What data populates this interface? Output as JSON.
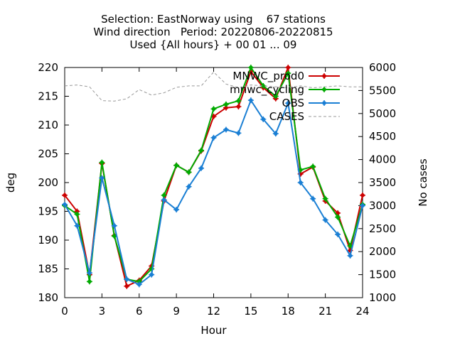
{
  "chart_data": {
    "type": "line",
    "title_lines": [
      "Selection: EastNorway using    67 stations",
      "Wind direction   Period: 20220806-20220815",
      "Used {All hours} + 00 01 ... 09"
    ],
    "xlabel": "Hour",
    "ylabel": "deg",
    "y2label": "No cases",
    "xlim": [
      0,
      24
    ],
    "ylim": [
      180,
      220
    ],
    "y2lim": [
      1000,
      6000
    ],
    "xticks": [
      "0",
      "3",
      "6",
      "9",
      "12",
      "15",
      "18",
      "21",
      "24"
    ],
    "yticks": [
      "180",
      "185",
      "190",
      "195",
      "200",
      "205",
      "210",
      "215",
      "220"
    ],
    "y2ticks": [
      "1000",
      "1500",
      "2000",
      "2500",
      "3000",
      "3500",
      "4000",
      "4500",
      "5000",
      "5500",
      "6000"
    ],
    "grid": false,
    "legend_position": "top-right",
    "x": [
      0,
      1,
      2,
      3,
      4,
      5,
      6,
      7,
      8,
      9,
      10,
      11,
      12,
      13,
      14,
      15,
      16,
      17,
      18,
      19,
      20,
      21,
      22,
      23,
      24
    ],
    "series": [
      {
        "name": "MNWC_prod0",
        "color": "#cc0000",
        "axis": "left",
        "values": [
          197.8,
          195.0,
          184.0,
          203.3,
          190.8,
          182.0,
          183.0,
          185.5,
          196.8,
          203.0,
          201.8,
          205.5,
          211.5,
          213.0,
          213.2,
          219.3,
          216.5,
          214.6,
          220.0,
          201.5,
          202.7,
          196.8,
          194.7,
          188.2,
          197.8
        ]
      },
      {
        "name": "mnwc_cycling",
        "color": "#00aa00",
        "axis": "left",
        "values": [
          196.0,
          194.5,
          182.8,
          203.5,
          190.7,
          183.2,
          182.8,
          185.0,
          197.8,
          203.0,
          201.8,
          205.6,
          212.8,
          213.6,
          214.2,
          220.0,
          216.8,
          215.0,
          219.0,
          202.2,
          202.8,
          197.2,
          194.0,
          189.0,
          196.2
        ]
      },
      {
        "name": "OBS",
        "color": "#1a7fd4",
        "axis": "left",
        "values": [
          196.2,
          192.5,
          184.3,
          200.8,
          192.5,
          183.2,
          182.3,
          184.0,
          197.0,
          195.3,
          199.3,
          202.5,
          207.8,
          209.2,
          208.6,
          214.3,
          211.0,
          208.5,
          213.8,
          200.0,
          197.2,
          193.5,
          191.0,
          187.3,
          196.0
        ]
      },
      {
        "name": "CASES",
        "color": "#999999",
        "axis": "right",
        "values": [
          5600,
          5620,
          5580,
          5280,
          5270,
          5320,
          5520,
          5400,
          5450,
          5570,
          5600,
          5600,
          5900,
          5640,
          5560,
          5620,
          5600,
          5580,
          5560,
          5600,
          5560,
          5580,
          5600,
          5580,
          5580
        ]
      }
    ]
  }
}
